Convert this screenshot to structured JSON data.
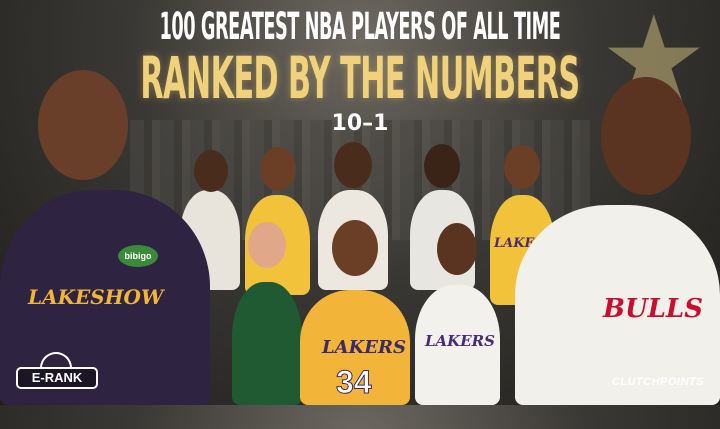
{
  "header": {
    "title_line1": "100 GREATEST NBA PLAYERS OF ALL TIME",
    "title_line2": "RANKED BY THE NUMBERS",
    "range": "10–1"
  },
  "jerseys": {
    "left_player_text": "LAKESHOW",
    "left_player_sponsor": "bibigo",
    "center_player_team": "LAKERS",
    "center_player_number": "34",
    "right_center_team": "LAKERS",
    "back_right_team": "LAKERS",
    "right_player_team": "BULLS"
  },
  "logos": {
    "erank": "E-RANK",
    "clutchpoints": "CLUTCHPOINTS"
  },
  "colors": {
    "title_white": "#ffffff",
    "title_gold": "#f1d27c",
    "lakers_gold": "#f2b53a",
    "lakers_purple": "#3a2a55",
    "bulls_red": "#c8102e",
    "celtics_green": "#1f5a33"
  }
}
